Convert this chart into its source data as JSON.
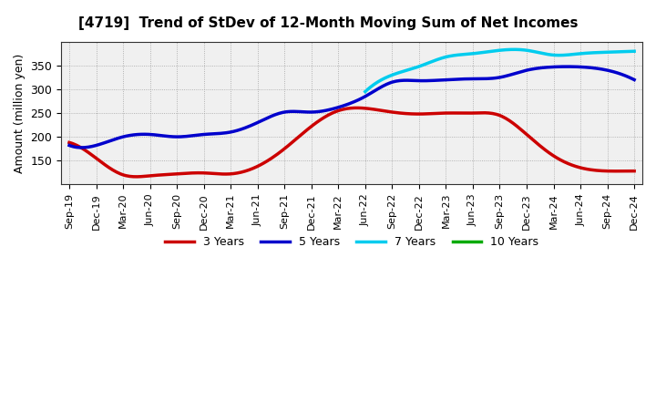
{
  "title": "[4719]  Trend of StDev of 12-Month Moving Sum of Net Incomes",
  "ylabel": "Amount (million yen)",
  "background_color": "#ffffff",
  "plot_bg_color": "#f0f0f0",
  "grid_color": "#999999",
  "x_labels": [
    "Sep-19",
    "Dec-19",
    "Mar-20",
    "Jun-20",
    "Sep-20",
    "Dec-20",
    "Mar-21",
    "Jun-21",
    "Sep-21",
    "Dec-21",
    "Mar-22",
    "Jun-22",
    "Sep-22",
    "Dec-22",
    "Mar-23",
    "Jun-23",
    "Sep-23",
    "Dec-23",
    "Mar-24",
    "Jun-24",
    "Sep-24",
    "Dec-24"
  ],
  "ylim": [
    100,
    400
  ],
  "yticks": [
    150,
    200,
    250,
    300,
    350
  ],
  "series": {
    "3 Years": {
      "color": "#cc0000",
      "data": [
        188,
        155,
        120,
        118,
        122,
        124,
        122,
        138,
        175,
        222,
        255,
        260,
        252,
        248,
        250,
        250,
        245,
        205,
        160,
        135,
        128,
        128
      ]
    },
    "5 Years": {
      "color": "#0000cc",
      "data": [
        182,
        182,
        200,
        205,
        200,
        205,
        210,
        230,
        252,
        252,
        262,
        285,
        315,
        318,
        320,
        322,
        325,
        340,
        347,
        347,
        340,
        320
      ]
    },
    "7 Years": {
      "color": "#00ccee",
      "data": [
        null,
        null,
        null,
        null,
        null,
        null,
        null,
        null,
        null,
        null,
        null,
        295,
        330,
        348,
        368,
        375,
        382,
        382,
        372,
        375,
        378,
        380
      ]
    },
    "10 Years": {
      "color": "#00aa00",
      "data": [
        null,
        null,
        null,
        null,
        null,
        null,
        null,
        null,
        null,
        null,
        null,
        null,
        null,
        null,
        null,
        null,
        null,
        null,
        null,
        null,
        null,
        null
      ]
    }
  },
  "legend_order": [
    "3 Years",
    "5 Years",
    "7 Years",
    "10 Years"
  ]
}
